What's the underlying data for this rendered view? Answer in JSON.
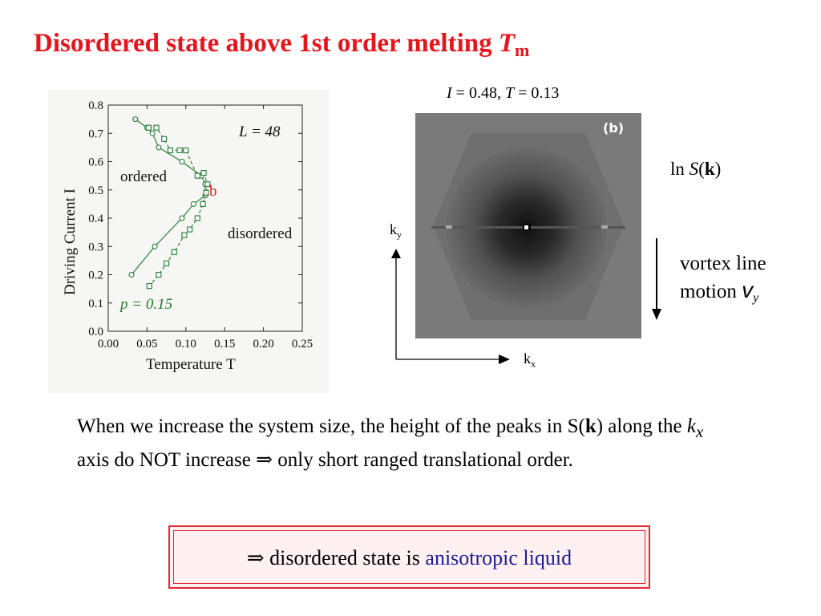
{
  "title": {
    "text": "Disordered state above 1st order melting",
    "symbol": "T",
    "subscript": "m"
  },
  "plot": {
    "L_label": "L = 48",
    "ordered_label": "ordered",
    "disordered_label": "disordered",
    "b_marker": "b",
    "p_label": "p = 0.15",
    "xlabel": "Temperature  T",
    "ylabel": "Driving Current   I"
  },
  "chart_data": {
    "type": "scatter",
    "title": "",
    "xlabel": "Temperature T",
    "ylabel": "Driving Current I",
    "xlim": [
      0.0,
      0.25
    ],
    "ylim": [
      0.0,
      0.8
    ],
    "xticks": [
      "0.00",
      "0.05",
      "0.10",
      "0.15",
      "0.20",
      "0.25"
    ],
    "yticks": [
      "0.0",
      "0.1",
      "0.2",
      "0.3",
      "0.4",
      "0.5",
      "0.6",
      "0.7",
      "0.8"
    ],
    "series": [
      {
        "marker": "circle",
        "line": "solid",
        "x": [
          0.035,
          0.05,
          0.057,
          0.065,
          0.095,
          0.12,
          0.125,
          0.125,
          0.11,
          0.095,
          0.06,
          0.03
        ],
        "y": [
          0.75,
          0.72,
          0.7,
          0.65,
          0.6,
          0.55,
          0.52,
          0.48,
          0.45,
          0.4,
          0.3,
          0.2
        ]
      },
      {
        "marker": "square",
        "line": "dashed",
        "x": [
          0.052,
          0.062,
          0.072,
          0.08,
          0.092,
          0.1,
          0.115,
          0.123,
          0.128,
          0.126,
          0.122,
          0.115,
          0.105,
          0.098,
          0.085,
          0.075,
          0.065,
          0.053
        ],
        "y": [
          0.72,
          0.72,
          0.68,
          0.64,
          0.64,
          0.64,
          0.55,
          0.56,
          0.52,
          0.49,
          0.45,
          0.4,
          0.36,
          0.34,
          0.28,
          0.24,
          0.2,
          0.16
        ]
      }
    ]
  },
  "map": {
    "caption_i": "I",
    "caption_i_value": " = 0.48,  ",
    "caption_t": "T",
    "caption_t_value": " = 0.13",
    "panel_tag": "(b)",
    "lns_prefix": "ln ",
    "lns_s": "S",
    "lns_k": "k",
    "motion_line1": "vortex line",
    "motion_line2": "motion ",
    "motion_v": "v",
    "motion_sub": "y",
    "ky_main": "k",
    "ky_sub": "y",
    "kx_main": "k",
    "kx_sub": "x"
  },
  "body": {
    "part1": "When we increase the system size, the height of the peaks in S(",
    "k_bold": "k",
    "part2": ") along the ",
    "kx_k": "k",
    "kx_x": "x",
    "part3": " axis do NOT increase  ⇒  only short ranged translational order."
  },
  "conclusion": {
    "arrow": "⇒",
    "text": "  disordered state is ",
    "highlight": "anisotropic liquid"
  },
  "colors": {
    "title": "#e8141b",
    "plot_green": "#1f7a2e",
    "highlight": "#1a1aa0",
    "box_border": "#e02a34"
  }
}
